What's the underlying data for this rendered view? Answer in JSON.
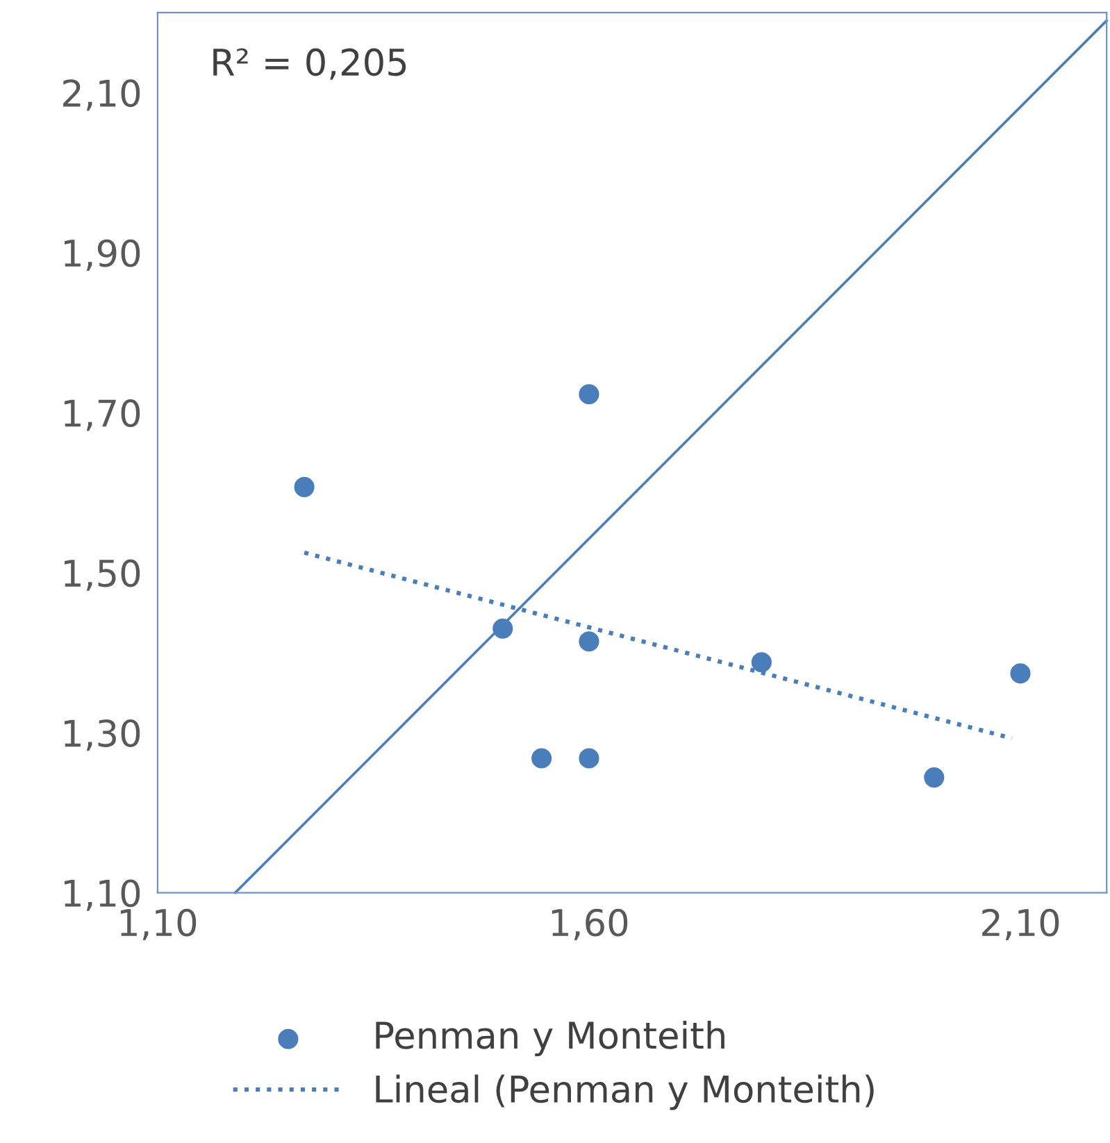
{
  "chart_data": {
    "type": "scatter",
    "xlim": [
      1.1,
      2.2
    ],
    "ylim": [
      1.1,
      2.2
    ],
    "xticks": [
      {
        "value": 1.1,
        "label": "1,10"
      },
      {
        "value": 1.6,
        "label": "1,60"
      },
      {
        "value": 2.1,
        "label": "2,10"
      }
    ],
    "yticks": [
      {
        "value": 1.1,
        "label": "1,10"
      },
      {
        "value": 1.3,
        "label": "1,30"
      },
      {
        "value": 1.5,
        "label": "1,50"
      },
      {
        "value": 1.7,
        "label": "1,70"
      },
      {
        "value": 1.9,
        "label": "1,90"
      },
      {
        "value": 2.1,
        "label": "2,10"
      }
    ],
    "grid": false,
    "legend": "bottom",
    "annotations": [
      "R² = 0,205"
    ],
    "series": [
      {
        "name": "Penman y Monteith",
        "marker": "circle",
        "color": "#4a7ebb",
        "x": [
          1.27,
          1.5,
          1.545,
          1.6,
          1.6,
          1.6,
          1.8,
          2.0,
          2.1
        ],
        "values": [
          1.607,
          1.43,
          1.268,
          1.723,
          1.414,
          1.268,
          1.388,
          1.244,
          1.374
        ]
      },
      {
        "name": "Lineal (Penman y Monteith)",
        "type": "line",
        "line_style": "dotted",
        "color": "#4a7ebb",
        "x": [
          1.27,
          2.09
        ],
        "values": [
          1.525,
          1.293
        ]
      },
      {
        "type": "line",
        "line_style": "solid",
        "color": "#4a7ebb",
        "x": [
          1.19,
          2.2
        ],
        "values": [
          1.1,
          2.19
        ]
      }
    ]
  }
}
